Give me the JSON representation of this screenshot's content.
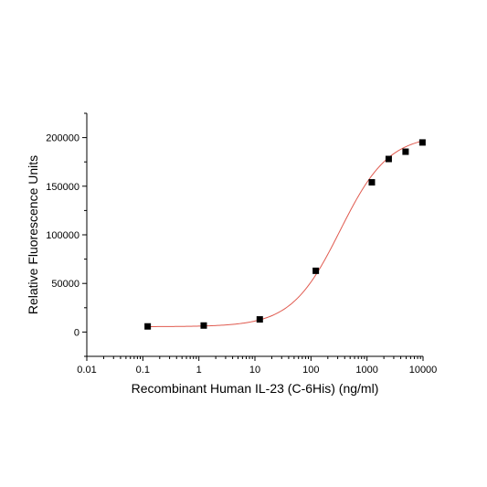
{
  "chart_data": {
    "type": "scatter",
    "title": "",
    "xlabel": "Recombinant Human IL-23 (C-6His) (ng/ml)",
    "ylabel": "Relative Fluorescence Units",
    "x_scale": "log",
    "xlim": [
      0.01,
      10000
    ],
    "ylim": [
      -25000,
      225000
    ],
    "x_ticks": [
      0.01,
      0.1,
      1,
      10,
      100,
      1000,
      10000
    ],
    "x_tick_labels": [
      "0.01",
      "0.1",
      "1",
      "10",
      "100",
      "1000",
      "10000"
    ],
    "y_ticks": [
      0,
      50000,
      100000,
      150000,
      200000
    ],
    "y_tick_labels": [
      "0",
      "50000",
      "100000",
      "150000",
      "200000"
    ],
    "grid": false,
    "points": {
      "x": [
        0.122,
        1.22,
        12.2,
        122,
        1220,
        2440,
        4880,
        9760
      ],
      "y": [
        5800,
        6700,
        13000,
        63000,
        154000,
        178000,
        185500,
        195000
      ],
      "color": "#000000"
    },
    "fit_curve": {
      "model": "four-parameter logistic",
      "bottom": 5500,
      "top": 203000,
      "ec50": 330,
      "hill": 1.0,
      "color": "#e05a4f"
    }
  }
}
